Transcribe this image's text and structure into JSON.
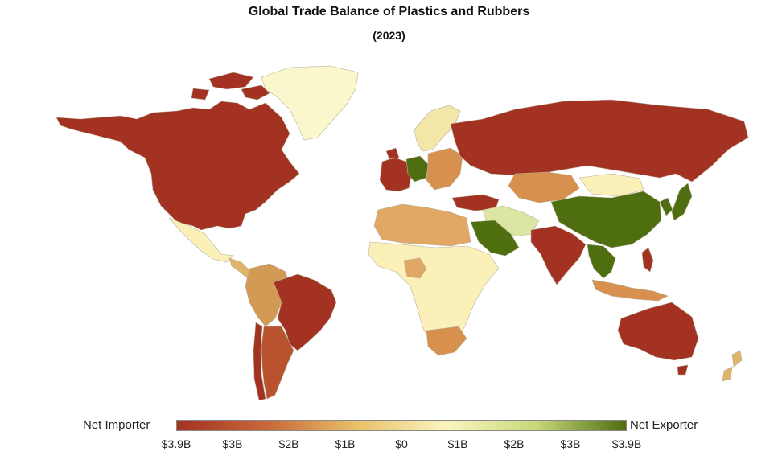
{
  "title": "Global Trade Balance of Plastics and Rubbers",
  "subtitle": "(2023)",
  "legend": {
    "left_label": "Net Importer",
    "right_label": "Net Exporter",
    "ticks": [
      "$3.9B",
      "$3B",
      "$2B",
      "$1B",
      "$0",
      "$1B",
      "$2B",
      "$3B",
      "$3.9B"
    ],
    "colors": [
      "#a33222",
      "#c8683a",
      "#e8c068",
      "#fbf5c0",
      "#c8d87a",
      "#4e6e10"
    ]
  },
  "map_regions": [
    {
      "name": "north-america",
      "color": "#a33222"
    },
    {
      "name": "greenland",
      "color": "#fbf7cc"
    },
    {
      "name": "central-america",
      "color": "#e0b468"
    },
    {
      "name": "brazil",
      "color": "#a33222"
    },
    {
      "name": "south-america-west",
      "color": "#d39a55"
    },
    {
      "name": "argentina",
      "color": "#b9522e"
    },
    {
      "name": "chile",
      "color": "#a33222"
    },
    {
      "name": "western-europe",
      "color": "#a33222"
    },
    {
      "name": "germany",
      "color": "#4e6e10"
    },
    {
      "name": "scandinavia",
      "color": "#f2e6a8"
    },
    {
      "name": "eastern-europe",
      "color": "#d8904f"
    },
    {
      "name": "russia",
      "color": "#a33222"
    },
    {
      "name": "turkey",
      "color": "#a33222"
    },
    {
      "name": "middle-east",
      "color": "#dce6a2"
    },
    {
      "name": "saudi-arabia",
      "color": "#4e6e10"
    },
    {
      "name": "north-africa",
      "color": "#e0a864"
    },
    {
      "name": "sub-saharan-africa",
      "color": "#fbf1b8"
    },
    {
      "name": "nigeria",
      "color": "#e0a864"
    },
    {
      "name": "south-africa",
      "color": "#d8904f"
    },
    {
      "name": "central-asia",
      "color": "#d8904f"
    },
    {
      "name": "mongolia",
      "color": "#fbf1b8"
    },
    {
      "name": "china",
      "color": "#4e6e10"
    },
    {
      "name": "india",
      "color": "#a33222"
    },
    {
      "name": "southeast-asia",
      "color": "#4e6e10"
    },
    {
      "name": "japan-korea",
      "color": "#4e6e10"
    },
    {
      "name": "indonesia",
      "color": "#d8904f"
    },
    {
      "name": "philippines",
      "color": "#a33222"
    },
    {
      "name": "australia",
      "color": "#a33222"
    },
    {
      "name": "new-zealand",
      "color": "#e0b468"
    }
  ]
}
